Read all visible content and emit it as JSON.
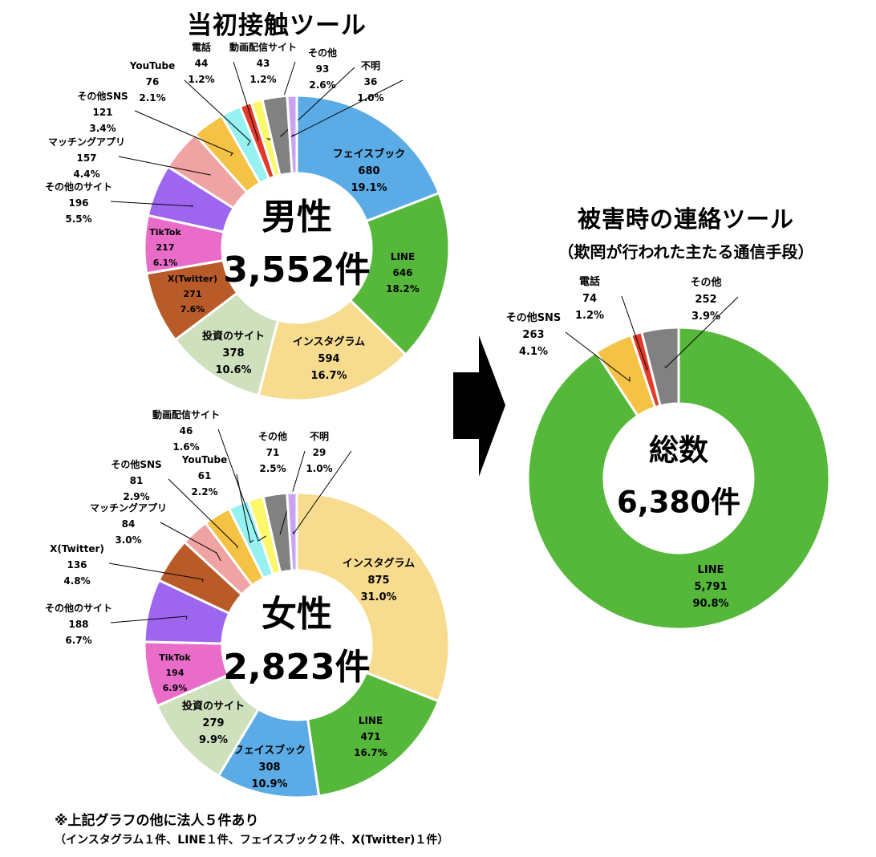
{
  "title": "当初接触ツール",
  "right_title": "被害時の連絡ツール",
  "right_subtitle": "（欺罔が行われた主たる通信手段）",
  "notes": {
    "line1": "※上記グラフの他に法人５件あり",
    "line2": "（インスタグラム１件、LINE１件、フェイスブック２件、X(Twitter)１件）"
  },
  "colors": {
    "facebook": "#5aabe6",
    "line": "#55b83a",
    "instagram": "#f7dc8f",
    "investment": "#cfe0bd",
    "x_twitter": "#b85b28",
    "tiktok": "#ea6cc9",
    "other_site": "#9e66ee",
    "matching": "#efa3a3",
    "other_sns": "#f4c244",
    "youtube": "#96f1f1",
    "phone": "#e23b2c",
    "video": "#fcf86a",
    "other": "#818181",
    "unknown": "#c9a3f1"
  },
  "chart_data": [
    {
      "type": "donut",
      "center_label": "男性",
      "center_value": "3,552件",
      "slices": [
        {
          "name": "フェイスブック",
          "value": "680",
          "percent": "19.1%",
          "color_key": "facebook"
        },
        {
          "name": "LINE",
          "value": "646",
          "percent": "18.2%",
          "color_key": "line"
        },
        {
          "name": "インスタグラム",
          "value": "594",
          "percent": "16.7%",
          "color_key": "instagram"
        },
        {
          "name": "投資のサイト",
          "value": "378",
          "percent": "10.6%",
          "color_key": "investment"
        },
        {
          "name": "X(Twitter)",
          "value": "271",
          "percent": "7.6%",
          "color_key": "x_twitter"
        },
        {
          "name": "TikTok",
          "value": "217",
          "percent": "6.1%",
          "color_key": "tiktok"
        },
        {
          "name": "その他のサイト",
          "value": "196",
          "percent": "5.5%",
          "color_key": "other_site"
        },
        {
          "name": "マッチングアプリ",
          "value": "157",
          "percent": "4.4%",
          "color_key": "matching"
        },
        {
          "name": "その他SNS",
          "value": "121",
          "percent": "3.4%",
          "color_key": "other_sns"
        },
        {
          "name": "YouTube",
          "value": "76",
          "percent": "2.1%",
          "color_key": "youtube"
        },
        {
          "name": "電話",
          "value": "44",
          "percent": "1.2%",
          "color_key": "phone"
        },
        {
          "name": "動画配信サイト",
          "value": "43",
          "percent": "1.2%",
          "color_key": "video"
        },
        {
          "name": "その他",
          "value": "93",
          "percent": "2.6%",
          "color_key": "other"
        },
        {
          "name": "不明",
          "value": "36",
          "percent": "1.0%",
          "color_key": "unknown"
        }
      ]
    },
    {
      "type": "donut",
      "center_label": "女性",
      "center_value": "2,823件",
      "slices": [
        {
          "name": "インスタグラム",
          "value": "875",
          "percent": "31.0%",
          "color_key": "instagram"
        },
        {
          "name": "LINE",
          "value": "471",
          "percent": "16.7%",
          "color_key": "line"
        },
        {
          "name": "フェイスブック",
          "value": "308",
          "percent": "10.9%",
          "color_key": "facebook"
        },
        {
          "name": "投資のサイト",
          "value": "279",
          "percent": "9.9%",
          "color_key": "investment"
        },
        {
          "name": "TikTok",
          "value": "194",
          "percent": "6.9%",
          "color_key": "tiktok"
        },
        {
          "name": "その他のサイト",
          "value": "188",
          "percent": "6.7%",
          "color_key": "other_site"
        },
        {
          "name": "X(Twitter)",
          "value": "136",
          "percent": "4.8%",
          "color_key": "x_twitter"
        },
        {
          "name": "マッチングアプリ",
          "value": "84",
          "percent": "3.0%",
          "color_key": "matching"
        },
        {
          "name": "その他SNS",
          "value": "81",
          "percent": "2.9%",
          "color_key": "other_sns"
        },
        {
          "name": "YouTube",
          "value": "61",
          "percent": "2.2%",
          "color_key": "youtube"
        },
        {
          "name": "動画配信サイト",
          "value": "46",
          "percent": "1.6%",
          "color_key": "video"
        },
        {
          "name": "その他",
          "value": "71",
          "percent": "2.5%",
          "color_key": "other"
        },
        {
          "name": "不明",
          "value": "29",
          "percent": "1.0%",
          "color_key": "unknown"
        }
      ]
    },
    {
      "type": "donut",
      "center_label": "総数",
      "center_value": "6,380件",
      "slices": [
        {
          "name": "LINE",
          "value": "5,791",
          "percent": "90.8%",
          "color_key": "line"
        },
        {
          "name": "その他SNS",
          "value": "263",
          "percent": "4.1%",
          "color_key": "other_sns"
        },
        {
          "name": "電話",
          "value": "74",
          "percent": "1.2%",
          "color_key": "phone"
        },
        {
          "name": "その他",
          "value": "252",
          "percent": "3.9%",
          "color_key": "other"
        }
      ]
    }
  ]
}
